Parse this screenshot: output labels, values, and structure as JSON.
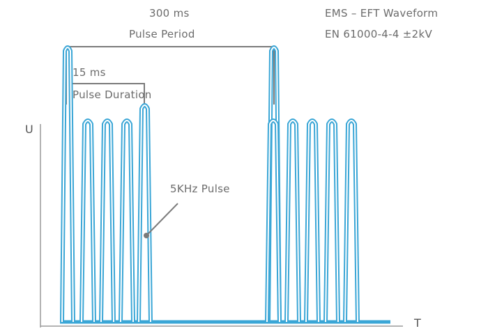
{
  "labels": {
    "period_value": "300 ms",
    "period_text": "Pulse Period",
    "duration_value": "15 ms",
    "duration_text": "Pulse Duration",
    "burst_label": "5KHz Pulse",
    "title_line1": "EMS – EFT Waveform",
    "title_line2": "EN 61000-4-4 ±2kV",
    "y_axis": "U",
    "x_axis": "T"
  },
  "colors": {
    "pulse": "#3aa6d6",
    "pulse_inner": "#ffffff",
    "bracket": "#7a7a7a",
    "axis": "#9a9a9a",
    "text": "#6b6b6b"
  }
}
